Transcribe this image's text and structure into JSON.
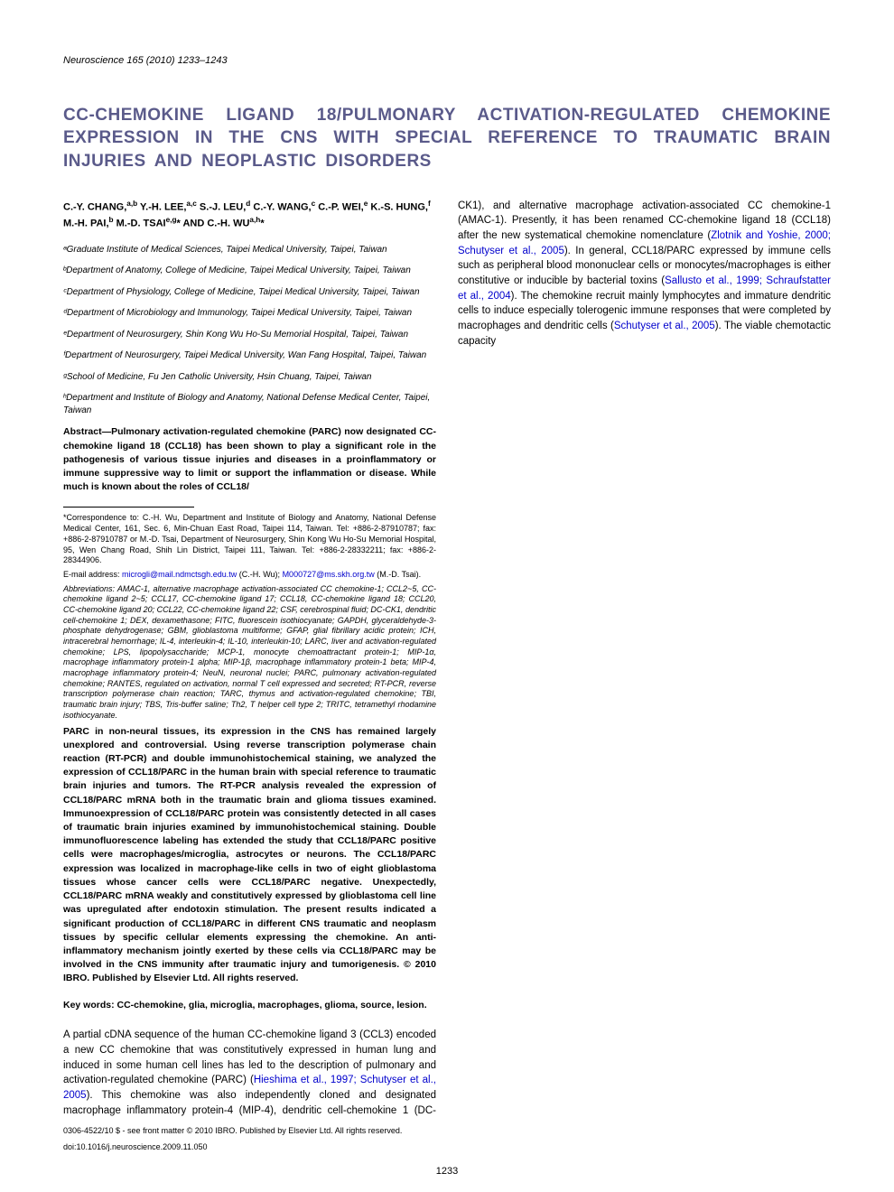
{
  "journal": {
    "name": "Neuroscience",
    "volume": "165 (2010) 1233–1243"
  },
  "title": "CC-CHEMOKINE LIGAND 18/PULMONARY ACTIVATION-REGULATED CHEMOKINE EXPRESSION IN THE CNS WITH SPECIAL REFERENCE TO TRAUMATIC BRAIN INJURIES AND NEOPLASTIC DISORDERS",
  "authors_html": "C.-Y. CHANG,<sup>a,b</sup> Y.-H. LEE,<sup>a,c</sup> S.-J. LEU,<sup>d</sup> C.-Y. WANG,<sup>c</sup> C.-P. WEI,<sup>e</sup> K.-S. HUNG,<sup>f</sup> M.-H. PAI,<sup>b</sup> M.-D. TSAI<sup>e,g</sup>* AND C.-H. WU<sup>a,h</sup>*",
  "affiliations": [
    "ᵃGraduate Institute of Medical Sciences, Taipei Medical University, Taipei, Taiwan",
    "ᵇDepartment of Anatomy, College of Medicine, Taipei Medical University, Taipei, Taiwan",
    "ᶜDepartment of Physiology, College of Medicine, Taipei Medical University, Taipei, Taiwan",
    "ᵈDepartment of Microbiology and Immunology, Taipei Medical University, Taipei, Taiwan",
    "ᵉDepartment of Neurosurgery, Shin Kong Wu Ho-Su Memorial Hospital, Taipei, Taiwan",
    "ᶠDepartment of Neurosurgery, Taipei Medical University, Wan Fang Hospital, Taipei, Taiwan",
    "ᵍSchool of Medicine, Fu Jen Catholic University, Hsin Chuang, Taipei, Taiwan",
    "ʰDepartment and Institute of Biology and Anatomy, National Defense Medical Center, Taipei, Taiwan"
  ],
  "abstract_part1": "Abstract—Pulmonary activation-regulated chemokine (PARC) now designated CC-chemokine ligand 18 (CCL18) has been shown to play a significant role in the pathogenesis of various tissue injuries and diseases in a proinflammatory or immune suppressive way to limit or support the inflammation or disease. While much is known about the roles of CCL18/",
  "abstract_part2": "PARC in non-neural tissues, its expression in the CNS has remained largely unexplored and controversial. Using reverse transcription polymerase chain reaction (RT-PCR) and double immunohistochemical staining, we analyzed the expression of CCL18/PARC in the human brain with special reference to traumatic brain injuries and tumors. The RT-PCR analysis revealed the expression of CCL18/PARC mRNA both in the traumatic brain and glioma tissues examined. Immunoexpression of CCL18/PARC protein was consistently detected in all cases of traumatic brain injuries examined by immunohistochemical staining. Double immunofluorescence labeling has extended the study that CCL18/PARC positive cells were macrophages/microglia, astrocytes or neurons. The CCL18/PARC expression was localized in macrophage-like cells in two of eight glioblastoma tissues whose cancer cells were CCL18/PARC negative. Unexpectedly, CCL18/PARC mRNA weakly and constitutively expressed by glioblastoma cell line was upregulated after endotoxin stimulation. The present results indicated a significant production of CCL18/PARC in different CNS traumatic and neoplasm tissues by specific cellular elements expressing the chemokine. An anti-inflammatory mechanism jointly exerted by these cells via CCL18/PARC may be involved in the CNS immunity after traumatic injury and tumorigenesis. © 2010 IBRO. Published by Elsevier Ltd. All rights reserved.",
  "keywords": "Key words: CC-chemokine, glia, microglia, macrophages, glioma, source, lesion.",
  "footnotes": {
    "correspondence": "*Correspondence to: C.-H. Wu, Department and Institute of Biology and Anatomy, National Defense Medical Center, 161, Sec. 6, Min-Chuan East Road, Taipei 114, Taiwan. Tel: +886-2-87910787; fax: +886-2-87910787 or M.-D. Tsai, Department of Neurosurgery, Shin Kong Wu Ho-Su Memorial Hospital, 95, Wen Chang Road, Shih Lin District, Taipei 111, Taiwan. Tel: +886-2-28332211; fax: +886-2-28344906.",
    "email_label": "E-mail address: ",
    "email1": "microgli@mail.ndmctsgh.edu.tw",
    "email1_who": " (C.-H. Wu); ",
    "email2": "M000727@ms.skh.org.tw",
    "email2_who": " (M.-D. Tsai).",
    "abbreviations": "Abbreviations: AMAC-1, alternative macrophage activation-associated CC chemokine-1; CCL2~5, CC-chemokine ligand 2~5; CCL17, CC-chemokine ligand 17; CCL18, CC-chemokine ligand 18; CCL20, CC-chemokine ligand 20; CCL22, CC-chemokine ligand 22; CSF, cerebrospinal fluid; DC-CK1, dendritic cell-chemokine 1; DEX, dexamethasone; FITC, fluorescein isothiocyanate; GAPDH, glyceraldehyde-3-phosphate dehydrogenase; GBM, glioblastoma multiforme; GFAP, glial fibrillary acidic protein; ICH, intracerebral hemorrhage; IL-4, interleukin-4; IL-10, interleukin-10; LARC, liver and activation-regulated chemokine; LPS, lipopolysaccharide; MCP-1, monocyte chemoattractant protein-1; MIP-1α, macrophage inflammatory protein-1 alpha; MIP-1β, macrophage inflammatory protein-1 beta; MIP-4, macrophage inflammatory protein-4; NeuN, neuronal nuclei; PARC, pulmonary activation-regulated chemokine; RANTES, regulated on activation, normal T cell expressed and secreted; RT-PCR, reverse transcription polymerase chain reaction; TARC, thymus and activation-regulated chemokine; TBI, traumatic brain injury; TBS, Tris-buffer saline; Th2, T helper cell type 2; TRITC, tetramethyl rhodamine isothiocyanate."
  },
  "body": {
    "p1_a": "A partial cDNA sequence of the human CC-chemokine ligand 3 (CCL3) encoded a new CC chemokine that was constitutively expressed in human lung and induced in some human cell lines has led to the description of pulmonary and activation-regulated chemokine (PARC) (",
    "p1_cite1": "Hieshima et al., 1997; Schutyser et al., 2005",
    "p1_b": "). This chemokine was also independently cloned and designated macrophage inflammatory protein-4 (MIP-4), dendritic cell-chemokine 1 (DC-CK1), and alternative macrophage activation-associated CC chemokine-1 (AMAC-1). Presently, it has been renamed CC-chemokine ligand 18 (CCL18) after the new systematical chemokine nomenclature (",
    "p1_cite2": "Zlotnik and Yoshie, 2000; Schutyser et al., 2005",
    "p1_c": "). In general, CCL18/PARC expressed by immune cells such as peripheral blood mononuclear cells or monocytes/macrophages is either constitutive or inducible by bacterial toxins (",
    "p1_cite3": "Sallusto et al., 1999; Schraufstatter et al., 2004",
    "p1_d": "). The chemokine recruit mainly lymphocytes and immature dendritic cells to induce especially tolerogenic immune responses that were completed by macrophages and dendritic cells (",
    "p1_cite4": "Schutyser et al., 2005",
    "p1_e": "). The viable chemotactic capacity"
  },
  "copyright": "0306-4522/10 $ - see front matter © 2010 IBRO. Published by Elsevier Ltd. All rights reserved.",
  "doi": "doi:10.1016/j.neuroscience.2009.11.050",
  "page_number": "1233",
  "colors": {
    "title": "#5a5a8a",
    "link": "#0000cc",
    "text": "#000000",
    "background": "#ffffff"
  },
  "typography": {
    "title_fontsize": 19,
    "body_fontsize": 11.5,
    "abstract_fontsize": 10.5,
    "footnote_fontsize": 9,
    "affil_fontsize": 10
  }
}
